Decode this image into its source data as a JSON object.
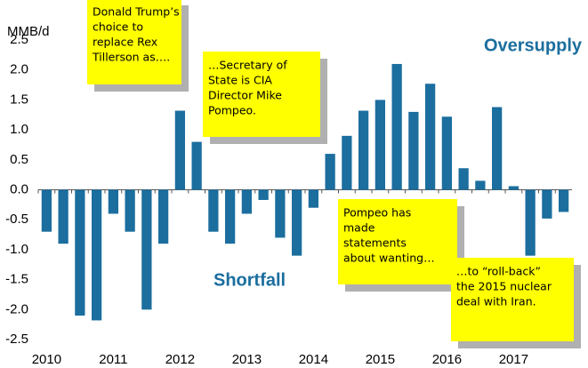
{
  "chart_data": {
    "type": "bar",
    "ylabel": "MMB/d",
    "categories": [
      "2010",
      null,
      null,
      null,
      "2011",
      null,
      null,
      null,
      "2012",
      null,
      null,
      null,
      "2013",
      null,
      null,
      null,
      "2014",
      null,
      null,
      null,
      "2015",
      null,
      null,
      null,
      "2016",
      null,
      null,
      null,
      "2017",
      null,
      null,
      null
    ],
    "values": [
      -0.7,
      -0.9,
      -2.1,
      -2.18,
      -0.4,
      -0.7,
      -2.0,
      -0.9,
      1.32,
      0.8,
      -0.7,
      -0.9,
      -0.4,
      -0.17,
      -0.8,
      -1.1,
      -0.3,
      0.6,
      0.9,
      1.32,
      1.5,
      2.1,
      1.3,
      1.77,
      1.22,
      0.36,
      0.15,
      1.38,
      0.06,
      -1.1,
      -0.48,
      -0.37
    ],
    "color": "#1b6e9e",
    "ylim": [
      -2.5,
      2.5
    ],
    "yticks": [
      -2.5,
      {
        "value": -2,
        "label": "-2.0"
      },
      -1.5,
      {
        "value": -1,
        "label": "-1.0"
      },
      -0.5,
      {
        "value": 0,
        "label": "0.0"
      },
      0.5,
      {
        "value": 1,
        "label": "1.0"
      },
      1.5,
      {
        "value": 2,
        "label": "2.0"
      },
      2.5
    ],
    "grid": false,
    "annotations": [
      "Oversupply",
      "Shortfall"
    ],
    "notes": [
      [
        "Donald Trump’s",
        "choice to",
        "replace Rex",
        "Tillerson as…."
      ],
      [
        "…Secretary of",
        "State is CIA",
        "Director Mike",
        "Pompeo."
      ],
      [
        "Pompeo has",
        "made",
        "statements",
        "about wanting…"
      ],
      [
        "…to “roll-back”",
        "the 2015 nuclear",
        "deal with Iran."
      ]
    ]
  }
}
